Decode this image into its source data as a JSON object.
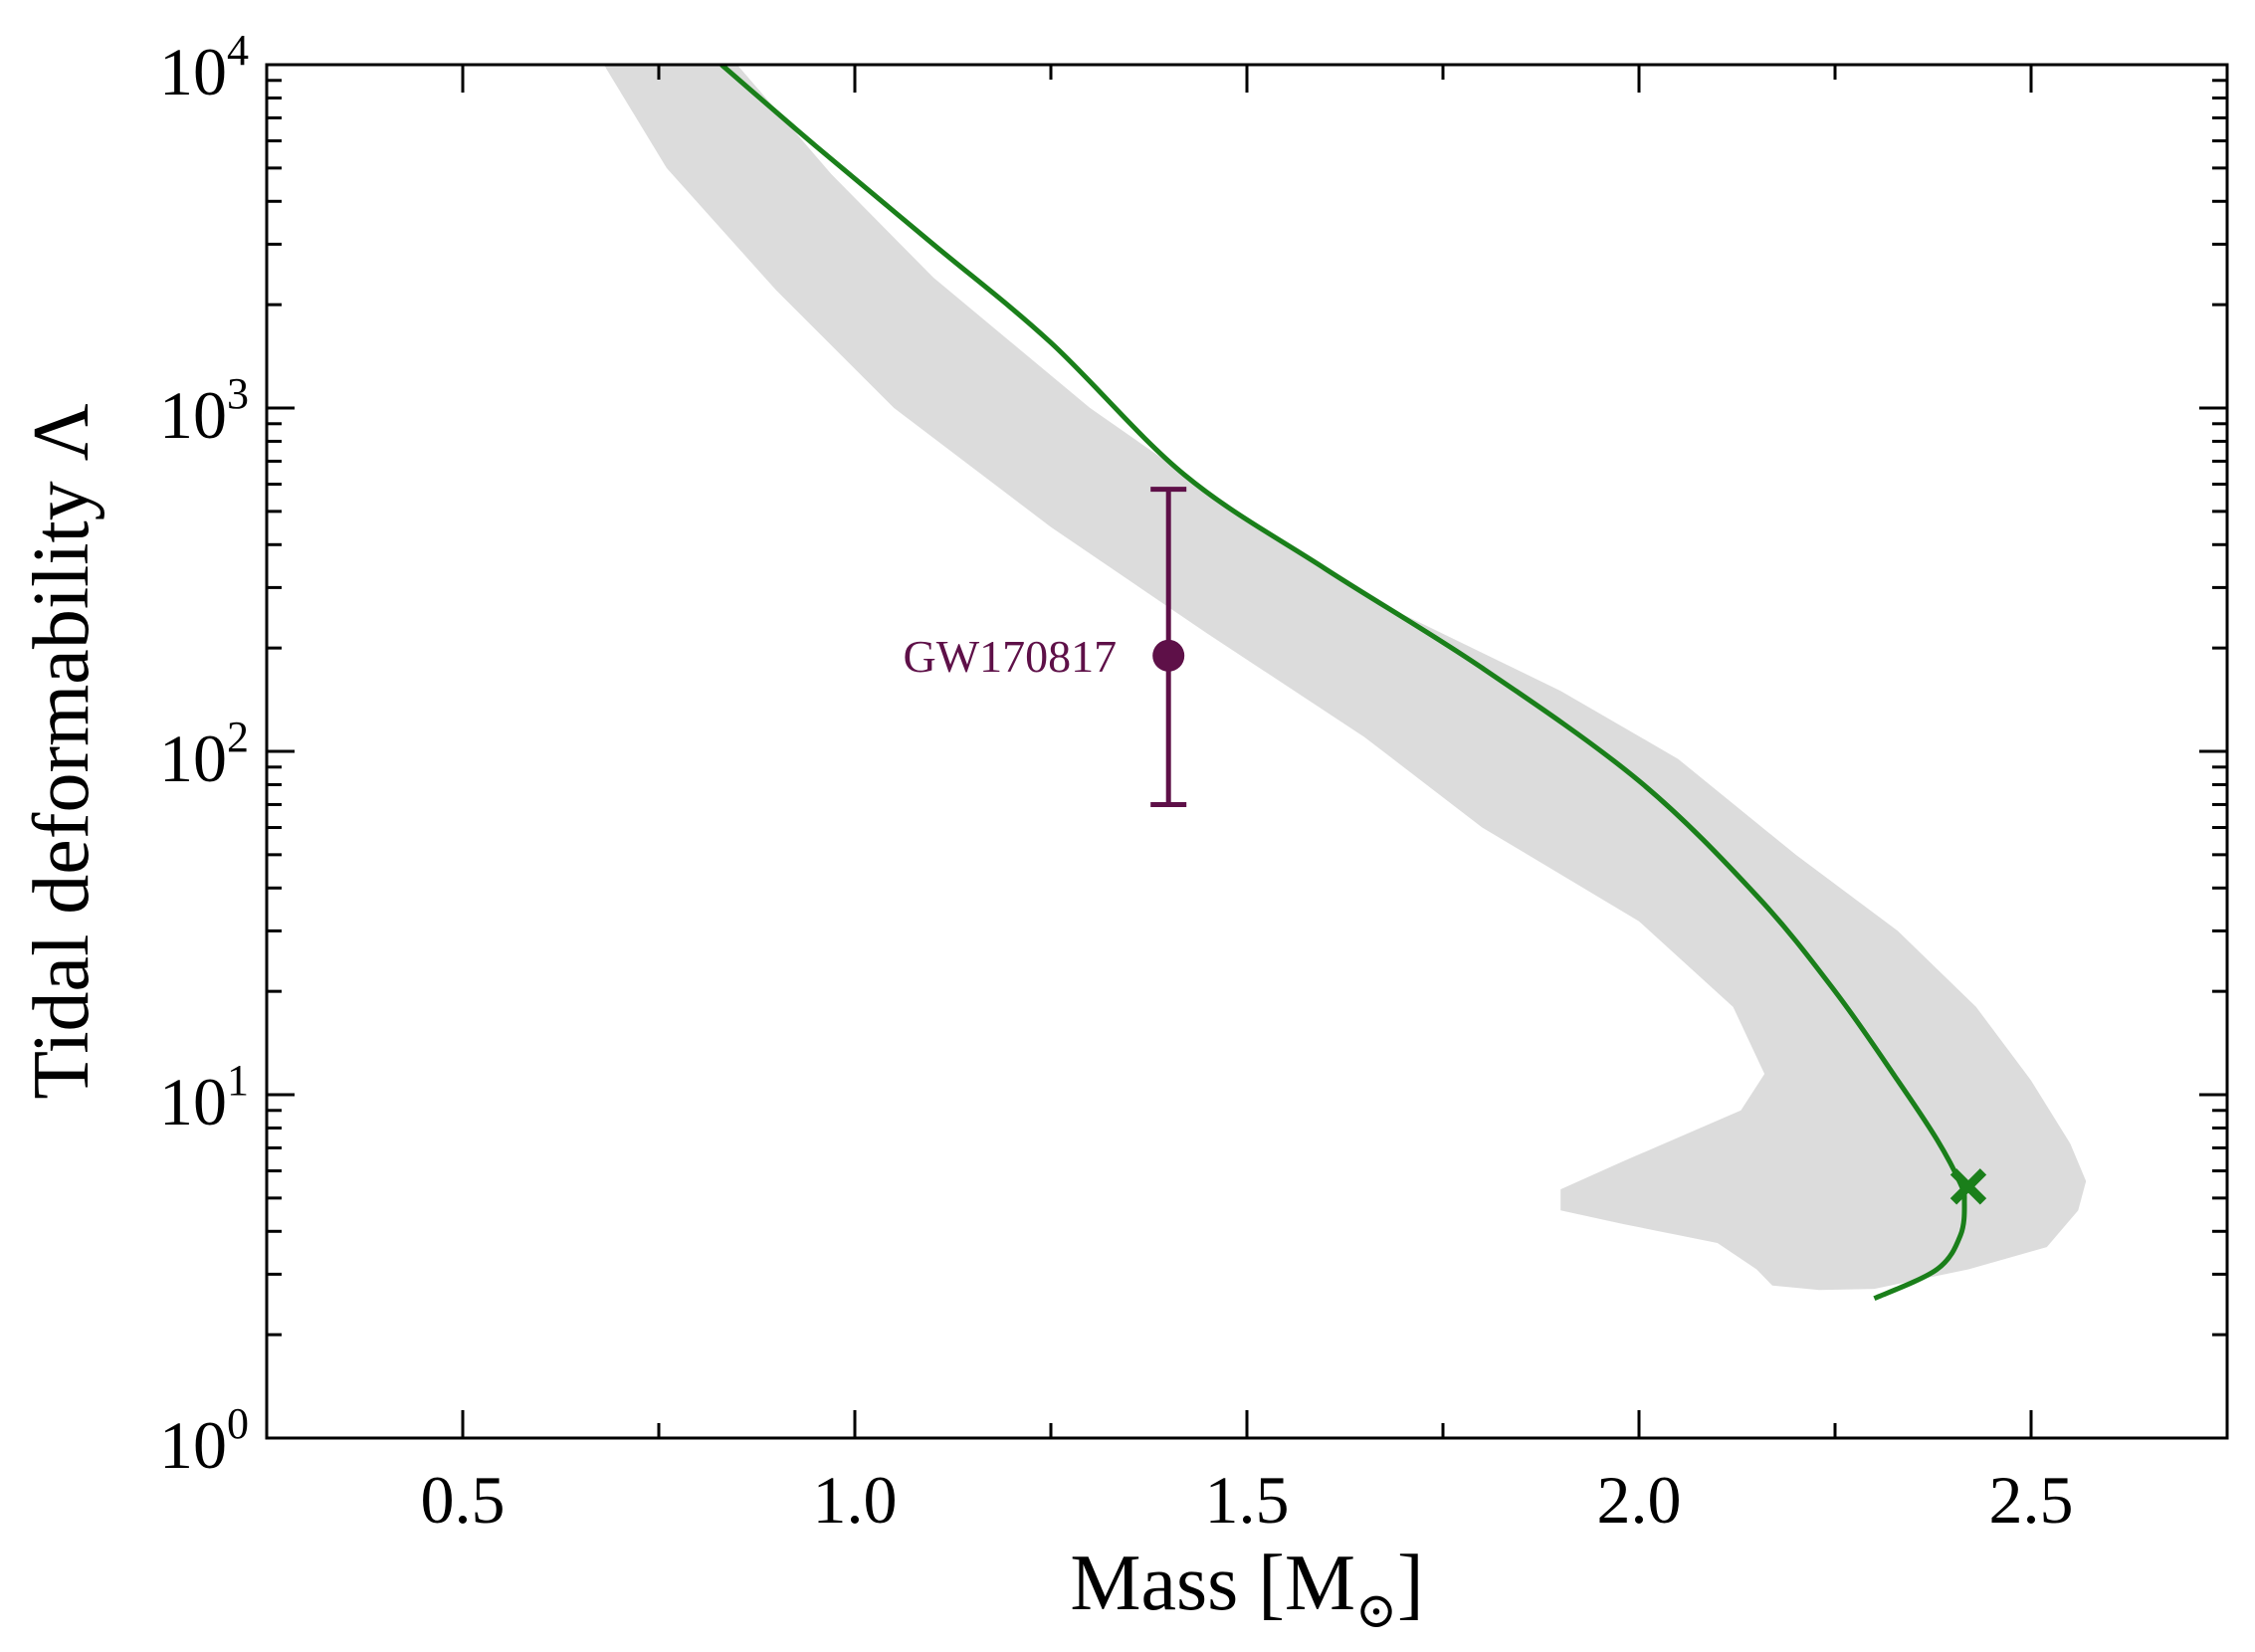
{
  "chart_data": {
    "type": "line",
    "xlabel": "Mass [M",
    "xlabel_sub": "⊙",
    "xlabel_end": "]",
    "ylabel": "Tidal deformability Λ",
    "xlim": [
      0.25,
      2.75
    ],
    "ylim_log10": [
      0,
      4
    ],
    "y_scale": "log",
    "grid": false,
    "x_ticks": [
      {
        "value": 0.5,
        "label": "0.5"
      },
      {
        "value": 1.0,
        "label": "1.0"
      },
      {
        "value": 1.5,
        "label": "1.5"
      },
      {
        "value": 2.0,
        "label": "2.0"
      },
      {
        "value": 2.5,
        "label": "2.5"
      }
    ],
    "y_ticks": [
      {
        "exp": 0,
        "base": "10",
        "sup": "0"
      },
      {
        "exp": 1,
        "base": "10",
        "sup": "1"
      },
      {
        "exp": 2,
        "base": "10",
        "sup": "2"
      },
      {
        "exp": 3,
        "base": "10",
        "sup": "3"
      },
      {
        "exp": 4,
        "base": "10",
        "sup": "4"
      }
    ],
    "band": {
      "name": "uncertainty band",
      "color": "#dcdcdc",
      "points": [
        [
          0.68,
          10000
        ],
        [
          0.76,
          5000
        ],
        [
          0.9,
          2200
        ],
        [
          1.05,
          1000
        ],
        [
          1.25,
          450
        ],
        [
          1.45,
          220
        ],
        [
          1.65,
          110
        ],
        [
          1.8,
          60
        ],
        [
          2.0,
          32
        ],
        [
          2.12,
          18
        ],
        [
          2.16,
          11.5
        ],
        [
          2.13,
          9
        ],
        [
          1.98,
          6.4
        ],
        [
          1.9,
          5.3
        ],
        [
          1.9,
          4.6
        ],
        [
          1.98,
          4.2
        ],
        [
          2.1,
          3.7
        ],
        [
          2.15,
          3.1
        ],
        [
          2.17,
          2.78
        ],
        [
          2.23,
          2.7
        ],
        [
          2.3,
          2.72
        ],
        [
          2.42,
          3.1
        ],
        [
          2.52,
          3.6
        ],
        [
          2.56,
          4.6
        ],
        [
          2.57,
          5.6
        ],
        [
          2.55,
          7.2
        ],
        [
          2.5,
          11
        ],
        [
          2.43,
          18
        ],
        [
          2.33,
          30
        ],
        [
          2.2,
          50
        ],
        [
          2.05,
          95
        ],
        [
          1.9,
          150
        ],
        [
          1.7,
          250
        ],
        [
          1.5,
          480
        ],
        [
          1.3,
          1000
        ],
        [
          1.1,
          2400
        ],
        [
          0.97,
          4800
        ],
        [
          0.85,
          10000
        ]
      ]
    },
    "series": [
      {
        "name": "EOS curve",
        "color": "#1a7f1a",
        "points": [
          [
            0.83,
            10000
          ],
          [
            0.95,
            5800
          ],
          [
            1.1,
            3000
          ],
          [
            1.25,
            1550
          ],
          [
            1.42,
            640
          ],
          [
            1.6,
            340
          ],
          [
            1.8,
            175
          ],
          [
            2.0,
            82
          ],
          [
            2.15,
            38
          ],
          [
            2.25,
            20
          ],
          [
            2.33,
            11
          ],
          [
            2.38,
            7.4
          ],
          [
            2.41,
            5.5
          ],
          [
            2.415,
            4.9
          ],
          [
            2.41,
            3.9
          ],
          [
            2.38,
            3.1
          ],
          [
            2.3,
            2.55
          ]
        ]
      }
    ],
    "marker": {
      "name": "maximum mass",
      "symbol": "x",
      "color": "#1a7f1a",
      "x": 2.42,
      "y": 5.4
    },
    "observation": {
      "label": "GW170817",
      "color": "#5e1048",
      "x": 1.4,
      "y": 190,
      "y_low": 70,
      "y_high": 580
    }
  }
}
